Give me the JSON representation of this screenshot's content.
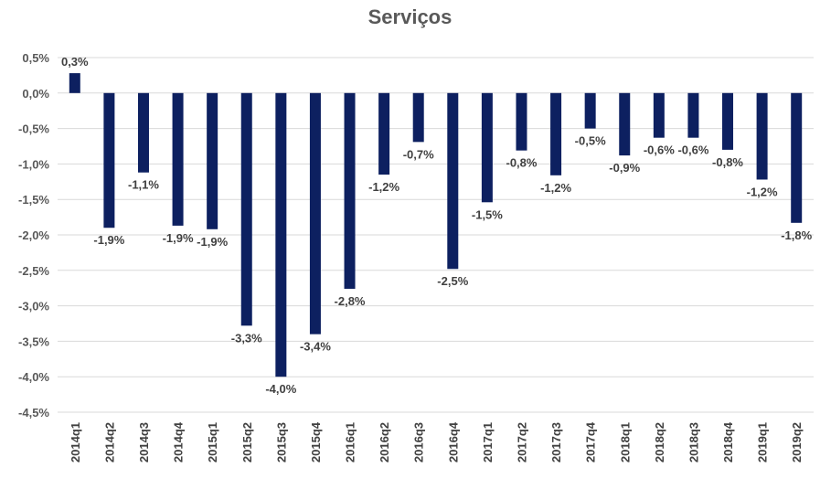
{
  "chart_data": {
    "type": "bar",
    "title": "Serviços",
    "xlabel": "",
    "ylabel": "",
    "ylim": [
      -4.5,
      0.5
    ],
    "grid": true,
    "bar_color": "#0d2060",
    "y_ticks": [
      0.5,
      0.0,
      -0.5,
      -1.0,
      -1.5,
      -2.0,
      -2.5,
      -3.0,
      -3.5,
      -4.0,
      -4.5
    ],
    "y_tick_labels": [
      "0,5%",
      "0,0%",
      "-0,5%",
      "-1,0%",
      "-1,5%",
      "-2,0%",
      "-2,5%",
      "-3,0%",
      "-3,5%",
      "-4,0%",
      "-4,5%"
    ],
    "categories": [
      "2014q1",
      "2014q2",
      "2014q3",
      "2014q4",
      "2015q1",
      "2015q2",
      "2015q3",
      "2015q4",
      "2016q1",
      "2016q2",
      "2016q3",
      "2016q4",
      "2017q1",
      "2017q2",
      "2017q3",
      "2017q4",
      "2018q1",
      "2018q2",
      "2018q3",
      "2018q4",
      "2019q1",
      "2019q2"
    ],
    "values": [
      0.28,
      -1.9,
      -1.12,
      -1.87,
      -1.92,
      -3.28,
      -4.0,
      -3.4,
      -2.76,
      -1.15,
      -0.69,
      -2.48,
      -1.54,
      -0.81,
      -1.16,
      -0.5,
      -0.88,
      -0.63,
      -0.63,
      -0.8,
      -1.22,
      -1.83
    ],
    "data_labels": [
      "0,3%",
      "-1,9%",
      "-1,1%",
      "-1,9%",
      "-1,9%",
      "-3,3%",
      "-4,0%",
      "-3,4%",
      "-2,8%",
      "-1,2%",
      "-0,7%",
      "-2,5%",
      "-1,5%",
      "-0,8%",
      "-1,2%",
      "-0,5%",
      "-0,9%",
      "-0,6%",
      "-0,6%",
      "-0,8%",
      "-1,2%",
      "-1,8%"
    ]
  }
}
